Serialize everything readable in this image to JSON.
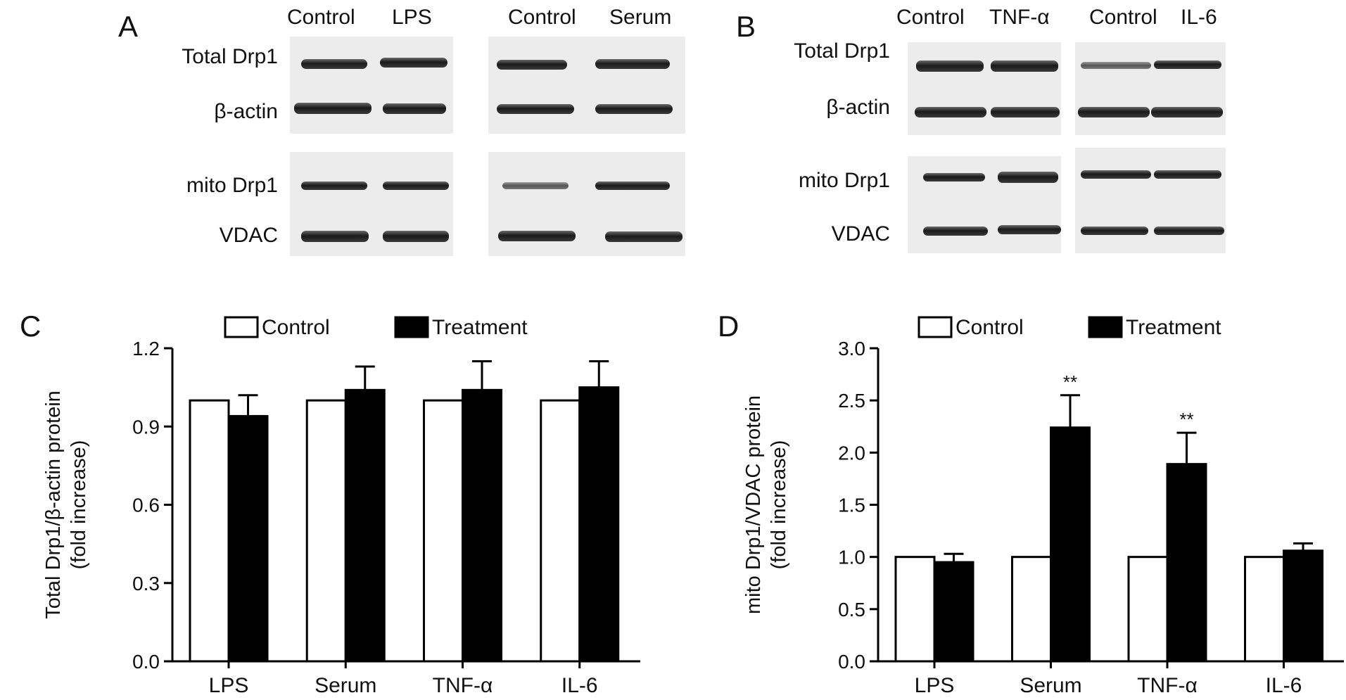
{
  "panels": {
    "a": {
      "letter": "A",
      "groups": [
        {
          "lanes": [
            "Control",
            "LPS"
          ]
        },
        {
          "lanes": [
            "Control",
            "Serum"
          ]
        }
      ],
      "rows": [
        "Total Drp1",
        "β-actin",
        "mito Drp1",
        "VDAC"
      ]
    },
    "b": {
      "letter": "B",
      "groups": [
        {
          "lanes": [
            "Control",
            "TNF-α"
          ]
        },
        {
          "lanes": [
            "Control",
            "IL-6"
          ]
        }
      ],
      "rows": [
        "Total Drp1",
        "β-actin",
        "mito Drp1",
        "VDAC"
      ]
    },
    "c": {
      "letter": "C"
    },
    "d": {
      "letter": "D"
    }
  },
  "chart_data": [
    {
      "type": "bar",
      "panel": "C",
      "categories": [
        "LPS",
        "Serum",
        "TNF-α",
        "IL-6"
      ],
      "series": [
        {
          "name": "Control",
          "values": [
            1.0,
            1.0,
            1.0,
            1.0
          ],
          "errors": [
            0,
            0,
            0,
            0
          ],
          "color": "#ffffff"
        },
        {
          "name": "Treatment",
          "values": [
            0.94,
            1.04,
            1.04,
            1.05
          ],
          "errors": [
            0.08,
            0.09,
            0.11,
            0.1
          ],
          "color": "#000000"
        }
      ],
      "ylabel": [
        "Total Drp1/β-actin protein",
        "(fold increase)"
      ],
      "ylim": [
        0,
        1.2
      ],
      "yticks": [
        "0.0",
        "0.3",
        "0.6",
        "0.9",
        "1.2"
      ],
      "significance": [
        "",
        "",
        "",
        ""
      ],
      "legend": "top",
      "grid": false
    },
    {
      "type": "bar",
      "panel": "D",
      "categories": [
        "LPS",
        "Serum",
        "TNF-α",
        "IL-6"
      ],
      "series": [
        {
          "name": "Control",
          "values": [
            1.0,
            1.0,
            1.0,
            1.0
          ],
          "errors": [
            0,
            0,
            0,
            0
          ],
          "color": "#ffffff"
        },
        {
          "name": "Treatment",
          "values": [
            0.95,
            2.24,
            1.89,
            1.06
          ],
          "errors": [
            0.08,
            0.31,
            0.3,
            0.07
          ],
          "color": "#000000"
        }
      ],
      "ylabel": [
        "mito Drp1/VDAC protein",
        "(fold increase)"
      ],
      "ylim": [
        0,
        3.0
      ],
      "yticks": [
        "0.0",
        "0.5",
        "1.0",
        "1.5",
        "2.0",
        "2.5",
        "3.0"
      ],
      "significance": [
        "",
        "**",
        "**",
        ""
      ],
      "legend": "top",
      "grid": false
    }
  ]
}
